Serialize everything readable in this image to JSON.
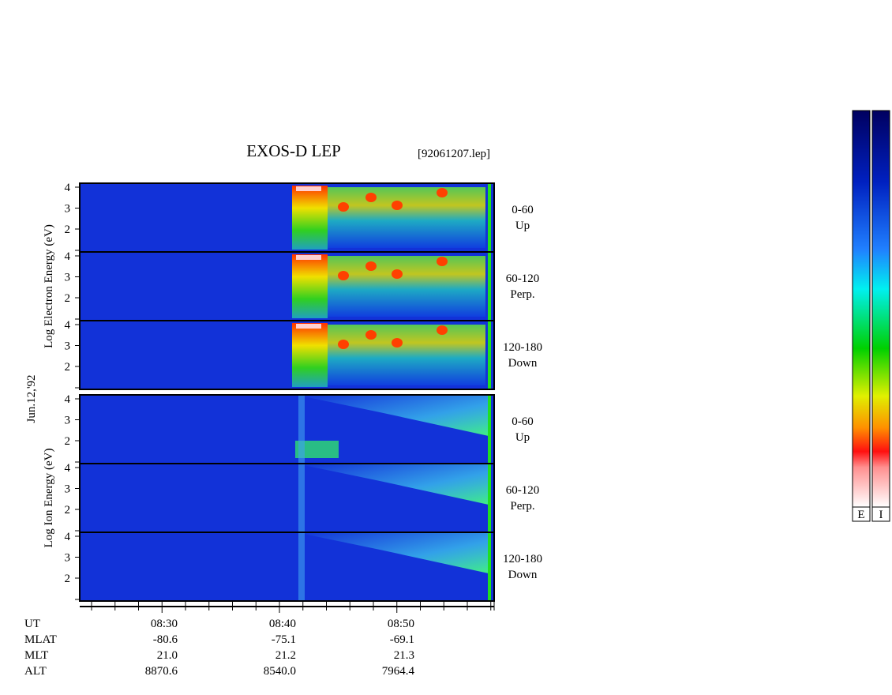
{
  "header": {
    "title": "EXOS-D LEP",
    "file": "[92061207.lep]"
  },
  "date": "Jun.12,'92",
  "electron": {
    "axis_label": "Log  Electron  Energy (eV)",
    "panels": [
      {
        "ticks": [
          "4",
          "3",
          "2"
        ],
        "label": [
          "0-60",
          "Up"
        ]
      },
      {
        "ticks": [
          "4",
          "3",
          "2"
        ],
        "label": [
          "60-120",
          "Perp."
        ]
      },
      {
        "ticks": [
          "4",
          "3",
          "2"
        ],
        "label": [
          "120-180",
          "Down"
        ]
      }
    ]
  },
  "ion": {
    "axis_label": "Log  Ion  Energy (eV)",
    "panels": [
      {
        "ticks": [
          "4",
          "3",
          "2"
        ],
        "label": [
          "0-60",
          "Up"
        ]
      },
      {
        "ticks": [
          "4",
          "3",
          "2"
        ],
        "label": [
          "60-120",
          "Perp."
        ]
      },
      {
        "ticks": [
          "4",
          "3",
          "2"
        ],
        "label": [
          "120-180",
          "Down"
        ]
      }
    ]
  },
  "orbit_table": {
    "rows": [
      {
        "label": "UT",
        "values": [
          "08:30",
          "08:40",
          "08:50"
        ]
      },
      {
        "label": "MLAT",
        "values": [
          "-80.6",
          "-75.1",
          "-69.1"
        ]
      },
      {
        "label": "MLT",
        "values": [
          "21.0",
          "21.2",
          "21.3"
        ]
      },
      {
        "label": "ALT",
        "values": [
          "8870.6",
          "8540.0",
          "7964.4"
        ]
      }
    ]
  },
  "colorbar": {
    "labels": [
      "E",
      "I"
    ]
  }
}
